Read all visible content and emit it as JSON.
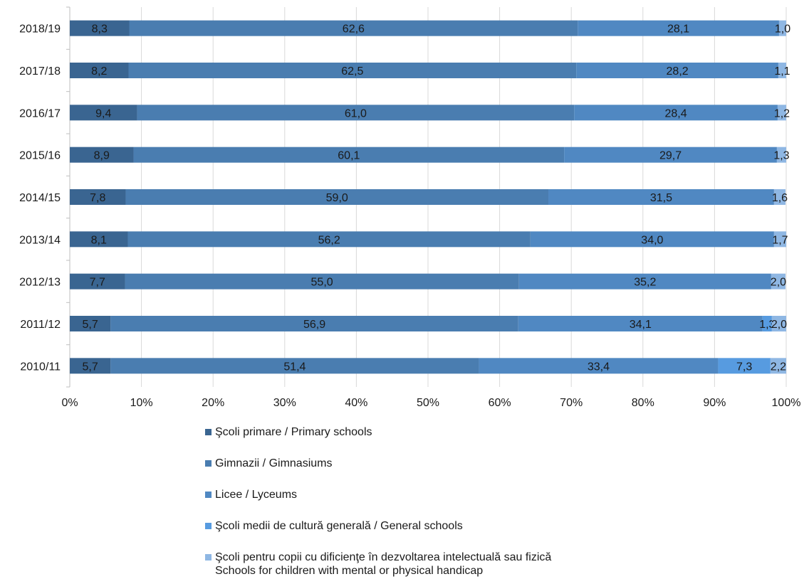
{
  "chart_data": {
    "type": "bar",
    "orientation": "horizontal",
    "stacked": "percent",
    "title": "",
    "xlabel": "",
    "ylabel": "",
    "xlim": [
      0,
      100
    ],
    "x_ticks": [
      "0%",
      "10%",
      "20%",
      "30%",
      "40%",
      "50%",
      "60%",
      "70%",
      "80%",
      "90%",
      "100%"
    ],
    "grid": "vertical",
    "legend_position": "bottom",
    "categories": [
      "2018/19",
      "2017/18",
      "2016/17",
      "2015/16",
      "2014/15",
      "2013/14",
      "2012/13",
      "2011/12",
      "2010/11"
    ],
    "series": [
      {
        "name": "Şcoli primare / Primary schools",
        "color": "#3a6591",
        "values": [
          8.3,
          8.2,
          9.4,
          8.9,
          7.8,
          8.1,
          7.7,
          5.7,
          5.7
        ],
        "labels": [
          "8,3",
          "8,2",
          "9,4",
          "8,9",
          "7,8",
          "8,1",
          "7,7",
          "5,7",
          "5,7"
        ]
      },
      {
        "name": "Gimnazii / Gimnasiums",
        "color": "#4a7db0",
        "values": [
          62.6,
          62.5,
          61.0,
          60.1,
          59.0,
          56.2,
          55.0,
          56.9,
          51.4
        ],
        "labels": [
          "62,6",
          "62,5",
          "61,0",
          "60,1",
          "59,0",
          "56,2",
          "55,0",
          "56,9",
          "51,4"
        ]
      },
      {
        "name": "Licee / Lyceums",
        "color": "#5088c2",
        "values": [
          28.1,
          28.2,
          28.4,
          29.7,
          31.5,
          34.0,
          35.2,
          34.1,
          33.4
        ],
        "labels": [
          "28,1",
          "28,2",
          "28,4",
          "29,7",
          "31,5",
          "34,0",
          "35,2",
          "34,1",
          "33,4"
        ]
      },
      {
        "name": "Şcoli medii de cultură generală / General schools",
        "color": "#579be0",
        "values": [
          0,
          0,
          0,
          0,
          0,
          0,
          0,
          1.3,
          7.3
        ],
        "labels": [
          "",
          "",
          "",
          "",
          "",
          "",
          "",
          "1,3",
          "7,3"
        ]
      },
      {
        "name": "Şcoli pentru copii cu dificienţe în dezvoltarea intelectuală sau fizică\nSchools for children with mental or physical handicap",
        "color": "#8fb7e3",
        "values": [
          1.0,
          1.1,
          1.2,
          1.3,
          1.6,
          1.7,
          2.0,
          2.0,
          2.2
        ],
        "labels": [
          "1,0",
          "1,1",
          "1,2",
          "1,3",
          "1,6",
          "1,7",
          "2,0",
          "2,0",
          "2,2"
        ]
      }
    ]
  }
}
